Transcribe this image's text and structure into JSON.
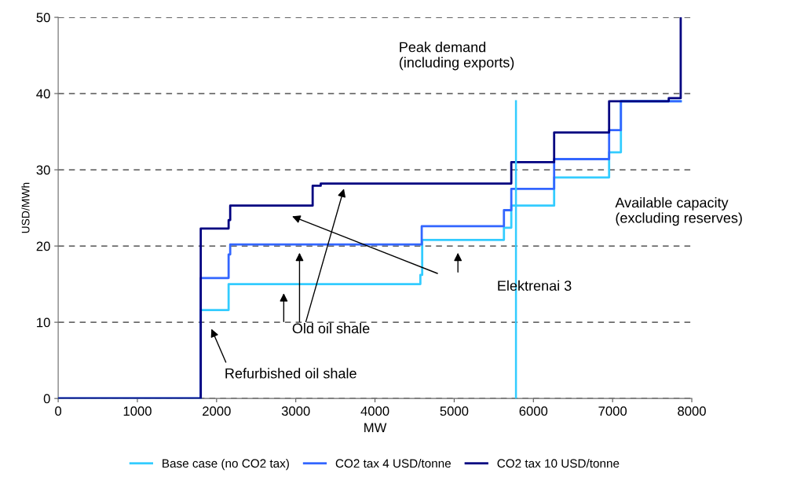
{
  "chart_data": {
    "type": "step",
    "xlabel": "MW",
    "ylabel": "USD/MWh",
    "xlim": [
      0,
      8000
    ],
    "ylim": [
      0,
      50
    ],
    "xticks": [
      0,
      1000,
      2000,
      3000,
      4000,
      5000,
      6000,
      7000,
      8000
    ],
    "yticks": [
      0,
      10,
      20,
      30,
      40,
      50
    ],
    "grid": "y",
    "legend": "bottom",
    "line_style": "solid",
    "marker": "none",
    "series": [
      {
        "name": "Base case (no CO2 tax)",
        "color": "#33ccff",
        "x": [
          0,
          1800,
          2152,
          4573,
          4596,
          5628,
          5721,
          6262,
          6956,
          7105,
          7860
        ],
        "values": [
          0,
          11.6,
          15.0,
          16.2,
          20.8,
          22.4,
          25.3,
          29.0,
          32.3,
          39.0,
          39.0
        ]
      },
      {
        "name": "CO2 tax 4 USD/tonne",
        "color": "#3366ff",
        "x": [
          0,
          1800,
          2152,
          2172,
          4590,
          5628,
          5721,
          6262,
          6956,
          7105,
          7860
        ],
        "values": [
          0,
          15.8,
          18.9,
          20.2,
          22.6,
          24.7,
          27.5,
          31.4,
          35.2,
          39.0,
          39.0
        ]
      },
      {
        "name": "CO2 tax 10 USD/tonne",
        "color": "#000080",
        "x": [
          0,
          1800,
          2152,
          2172,
          3213,
          3315,
          5721,
          6262,
          6956,
          7709,
          7860
        ],
        "values": [
          0,
          22.3,
          23.4,
          25.3,
          27.9,
          28.2,
          31.0,
          34.9,
          39.0,
          39.4,
          50
        ]
      },
      {
        "type": "line",
        "color": "#33ccff",
        "x": [
          5780,
          5780
        ],
        "values": [
          0,
          39
        ]
      }
    ],
    "annotations": [
      "Peak demand\n(including exports)",
      "Available capacity\n(excluding reserves)",
      "Elektrenai 3",
      "Old oil shale",
      "Refurbished oil shale"
    ]
  }
}
